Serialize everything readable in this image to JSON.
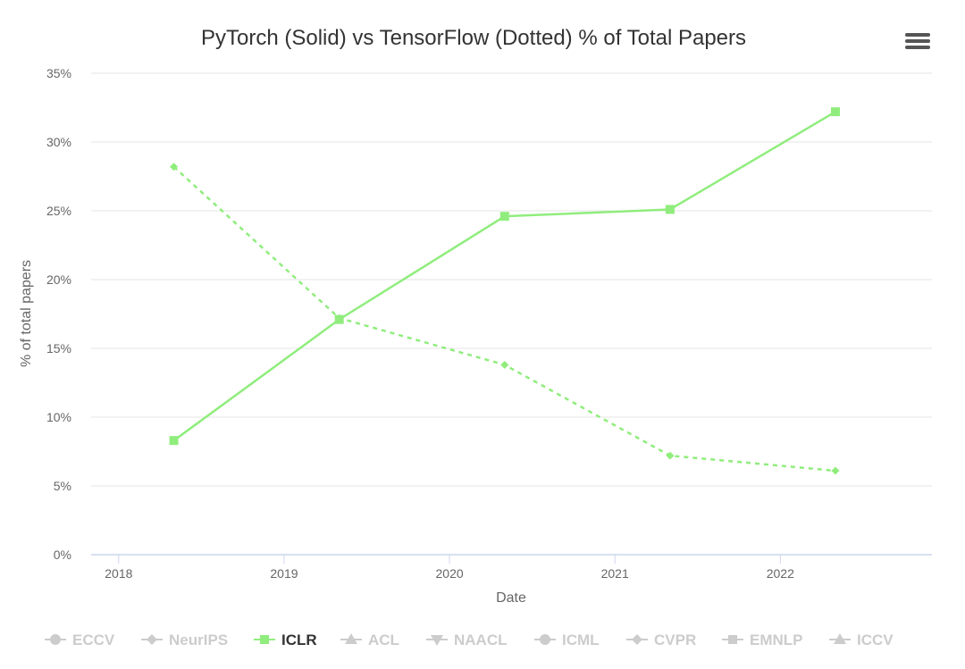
{
  "chart_data": {
    "type": "line",
    "title": "PyTorch (Solid) vs TensorFlow (Dotted) % of Total Papers",
    "xlabel": "Date",
    "ylabel": "% of total papers",
    "x_ticks": [
      "2018",
      "2019",
      "2020",
      "2021",
      "2022"
    ],
    "y_ticks": [
      "0%",
      "5%",
      "10%",
      "15%",
      "20%",
      "25%",
      "30%",
      "35%"
    ],
    "xlim": [
      "2017-11",
      "2022-12"
    ],
    "ylim": [
      0,
      35
    ],
    "grid": "horizontal",
    "legend_position": "bottom",
    "series": [
      {
        "legend": "ICLR",
        "framework": "PyTorch",
        "style": "solid",
        "marker": "square",
        "color": "#90ed7d",
        "x": [
          "2018-05",
          "2019-05",
          "2020-05",
          "2021-05",
          "2022-05"
        ],
        "values": [
          8.3,
          17.1,
          24.6,
          25.1,
          32.2
        ]
      },
      {
        "legend": "ICLR",
        "framework": "TensorFlow",
        "style": "dotted",
        "marker": "diamond",
        "color": "#90ed7d",
        "x": [
          "2018-05",
          "2019-05",
          "2020-05",
          "2021-05",
          "2022-05"
        ],
        "values": [
          28.2,
          17.2,
          13.8,
          7.2,
          6.1
        ]
      }
    ],
    "legend_items": [
      {
        "label": "ECCV",
        "marker": "circle",
        "active": false
      },
      {
        "label": "NeurIPS",
        "marker": "diamond",
        "active": false
      },
      {
        "label": "ICLR",
        "marker": "square",
        "active": true
      },
      {
        "label": "ACL",
        "marker": "triangle",
        "active": false
      },
      {
        "label": "NAACL",
        "marker": "triangle-down",
        "active": false
      },
      {
        "label": "ICML",
        "marker": "circle",
        "active": false
      },
      {
        "label": "CVPR",
        "marker": "diamond",
        "active": false
      },
      {
        "label": "EMNLP",
        "marker": "square",
        "active": false
      },
      {
        "label": "ICCV",
        "marker": "triangle",
        "active": false
      }
    ],
    "colors": {
      "active_series": "#90ed7d",
      "inactive_legend": "#cccccc",
      "active_legend_text": "#333333"
    }
  },
  "menu_icon": "hamburger-menu-icon"
}
